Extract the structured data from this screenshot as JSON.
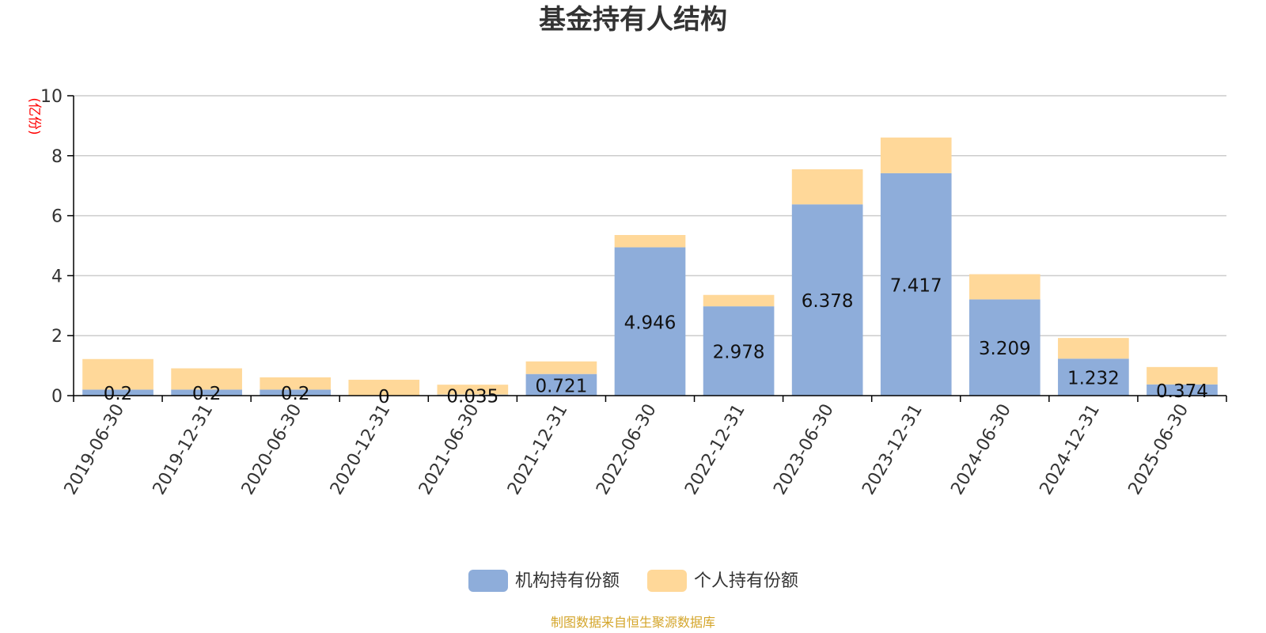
{
  "chart_data": {
    "type": "bar",
    "stacked": true,
    "title": "基金持有人结构",
    "unit_label": "(亿份)",
    "categories": [
      "2019-06-30",
      "2019-12-31",
      "2020-06-30",
      "2020-12-31",
      "2021-06-30",
      "2021-12-31",
      "2022-06-30",
      "2022-12-31",
      "2023-06-30",
      "2023-12-31",
      "2024-06-30",
      "2024-12-31",
      "2025-06-30"
    ],
    "series": [
      {
        "name": "机构持有份额",
        "color": "#8eadda",
        "values": [
          0.2,
          0.2,
          0.2,
          0,
          0.035,
          0.721,
          4.946,
          2.978,
          6.378,
          7.417,
          3.209,
          1.232,
          0.374
        ],
        "labels": [
          "0.2",
          "0.2",
          "0.2",
          "0",
          "0.035",
          "0.721",
          "4.946",
          "2.978",
          "6.378",
          "7.417",
          "3.209",
          "1.232",
          "0.374"
        ]
      },
      {
        "name": "个人持有份额",
        "color": "#ffd899",
        "values": [
          1.02,
          0.71,
          0.41,
          0.53,
          0.33,
          0.42,
          0.41,
          0.38,
          1.17,
          1.19,
          0.84,
          0.69,
          0.58
        ]
      }
    ],
    "ylim": [
      0,
      10
    ],
    "yticks": [
      0,
      2,
      4,
      6,
      8,
      10
    ],
    "grid": true,
    "legend_position": "bottom-center"
  },
  "source_note": "制图数据来自恒生聚源数据库",
  "colors": {
    "title": "#333333",
    "unit": "#ff0000",
    "axis": "#000000",
    "grid": "#cccccc",
    "source": "#d4a52a"
  }
}
